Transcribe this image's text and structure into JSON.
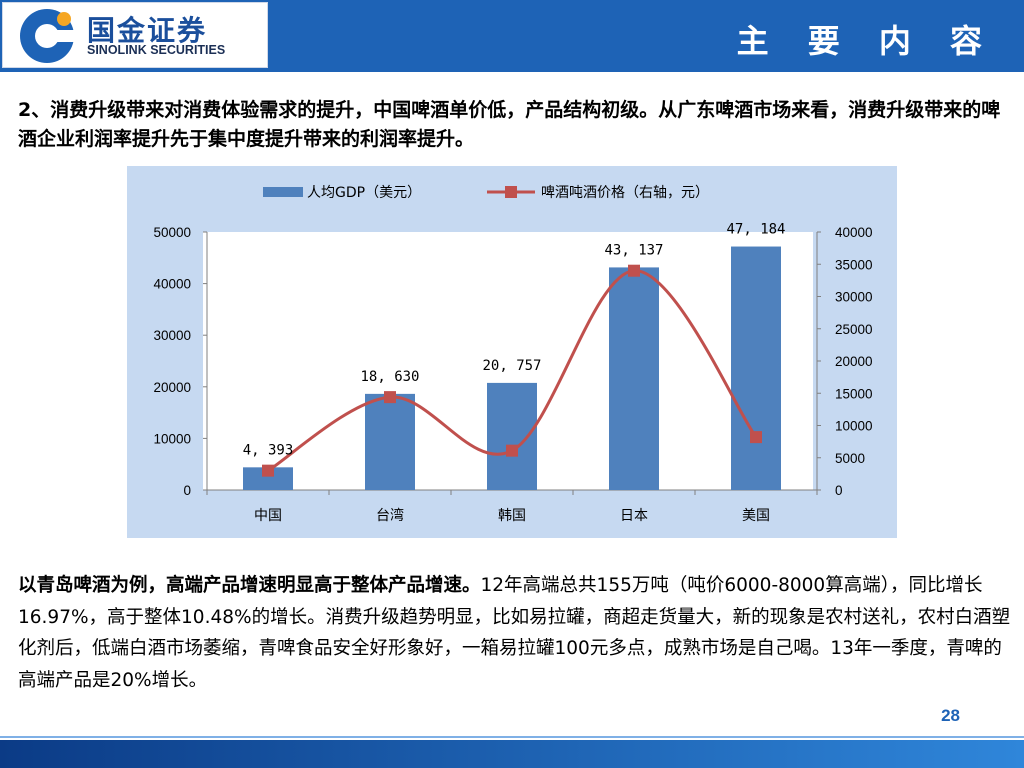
{
  "header": {
    "logo_cn": "国金证券",
    "logo_en": "SINOLINK SECURITIES",
    "title": "主 要 内 容",
    "brand_color": "#1e63b6"
  },
  "para1": "2、消费升级带来对消费体验需求的提升，中国啤酒单价低，产品结构初级。从广东啤酒市场来看，消费升级带来的啤酒企业利润率提升先于集中度提升带来的利润率提升。",
  "chart_data": {
    "type": "bar",
    "categories": [
      "中国",
      "台湾",
      "韩国",
      "日本",
      "美国"
    ],
    "series": [
      {
        "name": "人均GDP（美元）",
        "type": "bar",
        "axis": "left",
        "color": "#4f81bd",
        "values": [
          4393,
          18630,
          20757,
          43137,
          47184
        ],
        "data_labels": [
          "4, 393",
          "18, 630",
          "20, 757",
          "43, 137",
          "47, 184"
        ]
      },
      {
        "name": "啤酒吨酒价格（右轴，元）",
        "type": "line",
        "axis": "right",
        "color": "#c0504d",
        "values": [
          3000,
          14400,
          6100,
          34000,
          8200
        ]
      }
    ],
    "y_left": {
      "ylim": [
        0,
        50000
      ],
      "ticks": [
        "0",
        "10000",
        "20000",
        "30000",
        "40000",
        "50000"
      ]
    },
    "y_right": {
      "ylim": [
        0,
        40000
      ],
      "ticks": [
        "0",
        "5000",
        "10000",
        "15000",
        "20000",
        "25000",
        "30000",
        "35000",
        "40000"
      ]
    },
    "legend_position": "top",
    "grid": false
  },
  "para2": {
    "lead": "以青岛啤酒为例，高端产品增速明显高于整体产品增速。",
    "body": "12年高端总共155万吨（吨价6000-8000算高端），同比增长16.97%，高于整体10.48%的增长。消费升级趋势明显，比如易拉罐，商超走货量大，新的现象是农村送礼，农村白酒塑化剂后，低端白酒市场萎缩，青啤食品安全好形象好，一箱易拉罐100元多点，成熟市场是自己喝。13年一季度，青啤的高端产品是20%增长。"
  },
  "page_number": "28"
}
